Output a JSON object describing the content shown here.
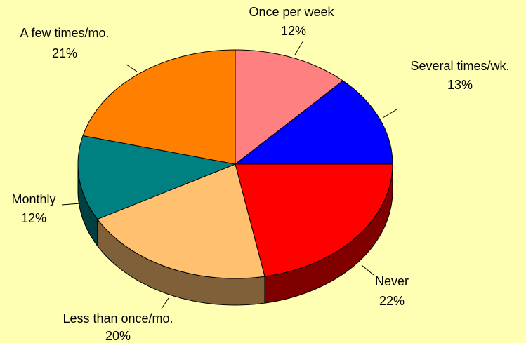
{
  "chart_data": {
    "type": "pie",
    "categories": [
      "Never",
      "Less than once/mo.",
      "Monthly",
      "A few times/mo.",
      "Once per week",
      "Several times/wk."
    ],
    "values": [
      22,
      20,
      12,
      21,
      12,
      13
    ],
    "value_labels": [
      "22%",
      "20%",
      "12%",
      "21%",
      "12%",
      "13%"
    ],
    "colors": [
      "#ff0000",
      "#ffc070",
      "#008080",
      "#ff8000",
      "#ff8080",
      "#0000ff"
    ],
    "side_colors": [
      "#800000",
      "#806038",
      "#004040",
      "#804000",
      "#804040",
      "#000080"
    ]
  }
}
